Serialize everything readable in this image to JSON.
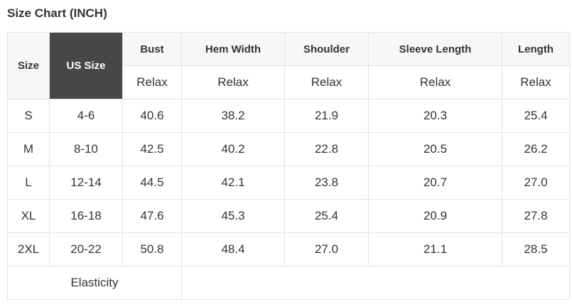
{
  "title": "Size Chart (INCH)",
  "header": {
    "size": "Size",
    "us_size": "US Size",
    "measures": [
      "Bust",
      "Hem Width",
      "Shoulder",
      "Sleeve Length",
      "Length"
    ],
    "fit": [
      "Relax",
      "Relax",
      "Relax",
      "Relax",
      "Relax"
    ]
  },
  "rows": [
    [
      "S",
      "4-6",
      "40.6",
      "38.2",
      "21.9",
      "20.3",
      "25.4"
    ],
    [
      "M",
      "8-10",
      "42.5",
      "40.2",
      "22.8",
      "20.5",
      "26.2"
    ],
    [
      "L",
      "12-14",
      "44.5",
      "42.1",
      "23.8",
      "20.7",
      "27.0"
    ],
    [
      "XL",
      "16-18",
      "47.6",
      "45.3",
      "25.4",
      "20.9",
      "27.8"
    ],
    [
      "2XL",
      "20-22",
      "50.8",
      "48.4",
      "27.0",
      "21.1",
      "28.5"
    ]
  ],
  "footer": {
    "elasticity_label": "Elasticity",
    "elasticity_value": ""
  },
  "colors": {
    "us_size_header_bg": "#474747",
    "header_bg": "#f7f7f7",
    "border": "#e2e2e2"
  }
}
